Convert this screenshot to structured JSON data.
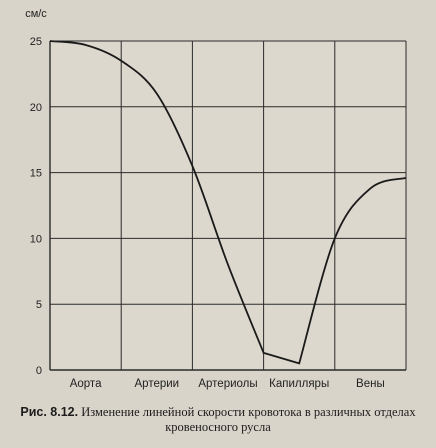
{
  "chart_data": {
    "type": "line",
    "ylabel": "см/с",
    "yticks": [
      0,
      5,
      10,
      15,
      20,
      25
    ],
    "ylim": [
      0,
      25
    ],
    "categories": [
      "Аорта",
      "Артерии",
      "Артериолы",
      "Капилляры",
      "Вены"
    ],
    "grid": true,
    "series": [
      {
        "x": [
          0,
          0.5,
          1.0,
          1.5,
          2.0,
          2.5,
          3.0,
          3.5,
          4.0,
          4.5,
          5.0
        ],
        "values": [
          25,
          24.7,
          23.5,
          21,
          15.5,
          8,
          1.3,
          0.5,
          10,
          13.8,
          14.6
        ]
      }
    ]
  },
  "caption": {
    "figure_label": "Рис. 8.12.",
    "text": "Изменение линейной скорости кровотока в различных отделах кровеносного русла"
  }
}
